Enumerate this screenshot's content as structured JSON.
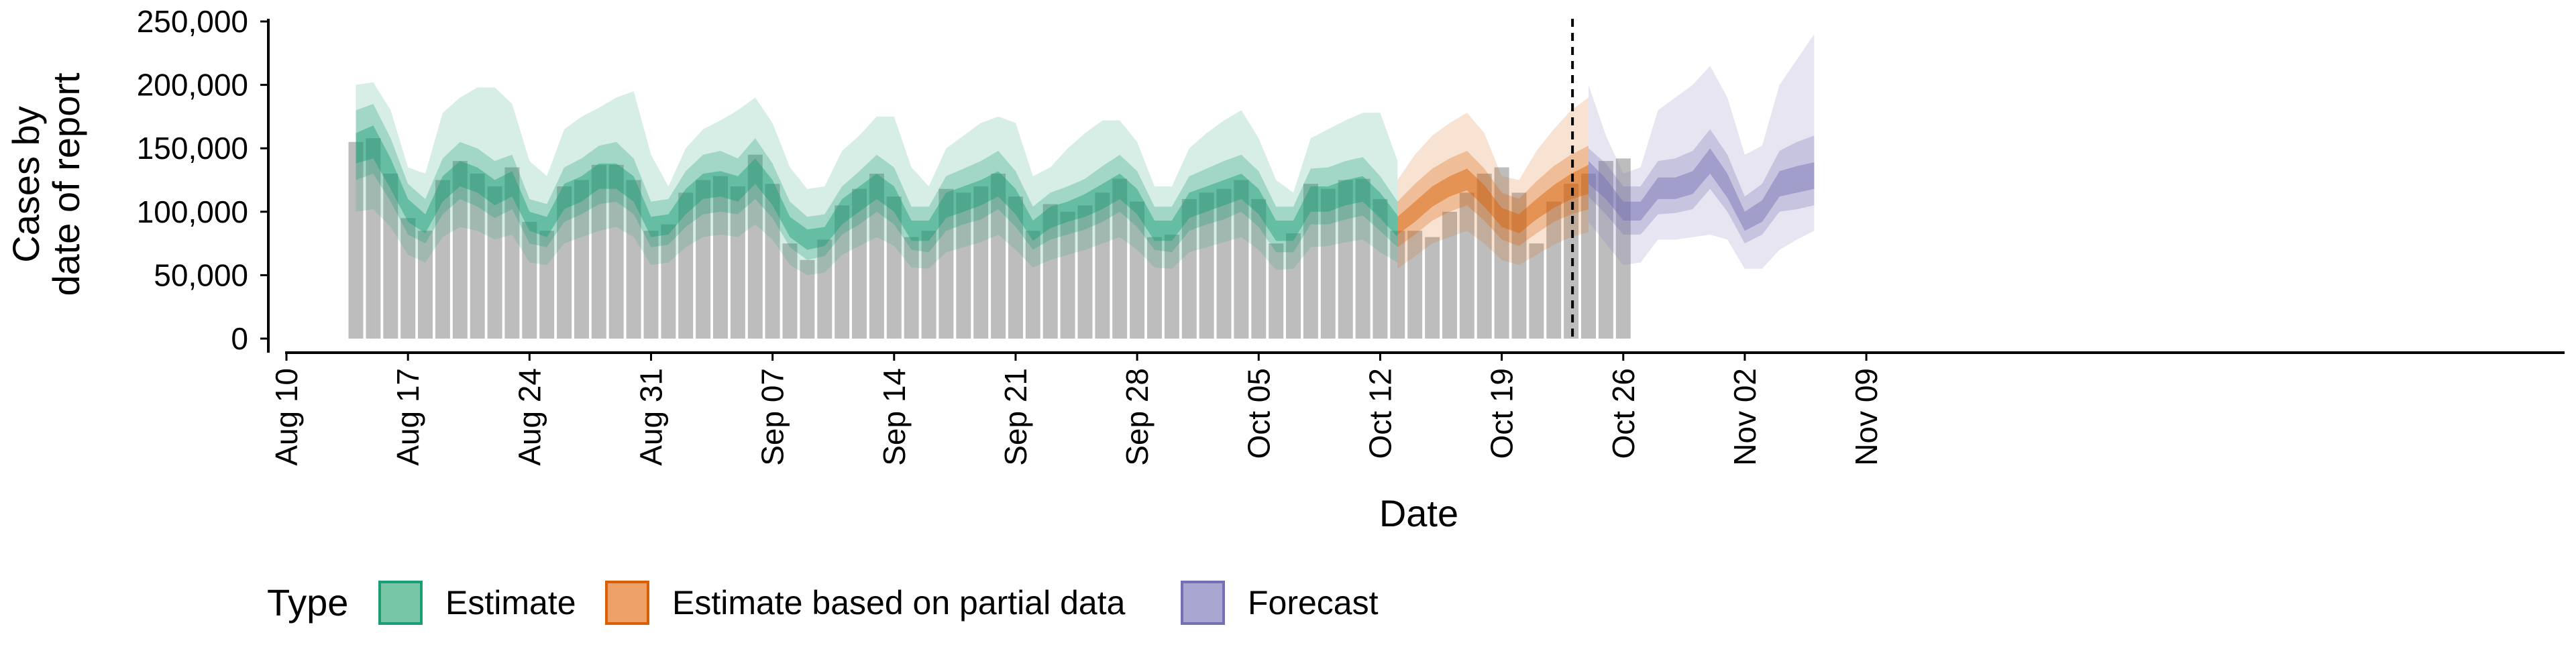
{
  "chart_data": {
    "type": "area",
    "xlabel": "Date",
    "ylabel_lines": [
      "Cases by",
      "date of report"
    ],
    "ylim": [
      0,
      250000
    ],
    "yticks": [
      0,
      50000,
      100000,
      150000,
      200000,
      250000
    ],
    "ytick_labels": [
      "0",
      "50,000",
      "100,000",
      "150,000",
      "200,000",
      "250,000"
    ],
    "xlim": [
      "2020-08-09",
      "2020-11-09"
    ],
    "xticks": [
      "2020-08-10",
      "2020-08-17",
      "2020-08-24",
      "2020-08-31",
      "2020-09-07",
      "2020-09-14",
      "2020-09-21",
      "2020-09-28",
      "2020-10-05",
      "2020-10-12",
      "2020-10-19",
      "2020-10-26",
      "2020-11-02",
      "2020-11-09"
    ],
    "xtick_labels": [
      "Aug 10",
      "Aug 17",
      "Aug 24",
      "Aug 31",
      "Sep 07",
      "Sep 14",
      "Sep 21",
      "Sep 28",
      "Oct 05",
      "Oct 12",
      "Oct 19",
      "Oct 26",
      "Nov 02",
      "Nov 09"
    ],
    "vline": "2020-10-23",
    "bars": {
      "start": "2020-08-14",
      "values": [
        155000,
        158000,
        130000,
        95000,
        85000,
        125000,
        140000,
        130000,
        120000,
        135000,
        92000,
        85000,
        120000,
        125000,
        137000,
        137000,
        125000,
        85000,
        90000,
        115000,
        125000,
        128000,
        120000,
        145000,
        122000,
        75000,
        62000,
        78000,
        105000,
        118000,
        130000,
        112000,
        80000,
        85000,
        118000,
        115000,
        120000,
        130000,
        112000,
        85000,
        106000,
        100000,
        105000,
        115000,
        126000,
        108000,
        80000,
        82000,
        110000,
        115000,
        118000,
        125000,
        110000,
        75000,
        83000,
        122000,
        118000,
        125000,
        126000,
        110000,
        85000,
        85000,
        80000,
        100000,
        115000,
        130000,
        135000,
        115000,
        75000,
        108000,
        122000,
        130000,
        140000,
        142000
      ]
    },
    "legend": {
      "title": "Type",
      "position": "bottom",
      "items": [
        {
          "label": "Estimate",
          "fill": "#77c6a6",
          "stroke": "#1b9e77"
        },
        {
          "label": "Estimate based on partial data",
          "fill": "#eda068",
          "stroke": "#d95f02"
        },
        {
          "label": "Forecast",
          "fill": "#a9a7d2",
          "stroke": "#7570b3"
        }
      ]
    },
    "series": [
      {
        "name": "Estimate",
        "color": "#1b9e77",
        "start": "2020-08-14",
        "median": [
          150000,
          155000,
          130000,
          100000,
          90000,
          118000,
          130000,
          125000,
          115000,
          122000,
          92000,
          88000,
          112000,
          118000,
          128000,
          128000,
          118000,
          88000,
          90000,
          108000,
          120000,
          122000,
          118000,
          132000,
          115000,
          88000,
          78000,
          80000,
          100000,
          110000,
          120000,
          110000,
          85000,
          85000,
          105000,
          110000,
          115000,
          122000,
          108000,
          85000,
          95000,
          100000,
          105000,
          112000,
          120000,
          108000,
          85000,
          85000,
          105000,
          110000,
          115000,
          120000,
          108000,
          85000,
          85000,
          110000,
          110000,
          115000,
          118000,
          105000,
          88000
        ],
        "inner": [
          [
            138000,
            142000,
            118000,
            92000,
            83000,
            108000,
            120000,
            115000,
            105000,
            112000,
            85000,
            80000,
            102000,
            108000,
            118000,
            118000,
            108000,
            80000,
            82000,
            98000,
            110000,
            112000,
            108000,
            122000,
            105000,
            80000,
            70000,
            73000,
            90000,
            100000,
            110000,
            100000,
            77000,
            77000,
            95000,
            100000,
            105000,
            112000,
            98000,
            77000,
            87000,
            92000,
            96000,
            102000,
            110000,
            98000,
            77000,
            77000,
            95000,
            100000,
            105000,
            110000,
            98000,
            77000,
            77000,
            100000,
            100000,
            105000,
            108000,
            95000,
            80000
          ],
          [
            162000,
            168000,
            142000,
            110000,
            98000,
            128000,
            140000,
            135000,
            125000,
            132000,
            100000,
            96000,
            122000,
            128000,
            138000,
            138000,
            128000,
            96000,
            98000,
            118000,
            130000,
            132000,
            128000,
            142000,
            125000,
            96000,
            86000,
            88000,
            110000,
            120000,
            130000,
            120000,
            93000,
            93000,
            115000,
            120000,
            125000,
            132000,
            118000,
            93000,
            104000,
            108000,
            114000,
            122000,
            130000,
            118000,
            93000,
            93000,
            115000,
            120000,
            125000,
            130000,
            118000,
            93000,
            93000,
            120000,
            120000,
            125000,
            128000,
            115000,
            97000
          ]
        ],
        "mid": [
          [
            125000,
            130000,
            108000,
            82000,
            75000,
            98000,
            110000,
            104000,
            95000,
            102000,
            75000,
            72000,
            92000,
            98000,
            106000,
            108000,
            98000,
            72000,
            74000,
            88000,
            98000,
            100000,
            98000,
            110000,
            95000,
            72000,
            62000,
            65000,
            82000,
            90000,
            100000,
            90000,
            70000,
            68000,
            85000,
            90000,
            94000,
            102000,
            88000,
            70000,
            78000,
            82000,
            86000,
            92000,
            100000,
            88000,
            70000,
            68000,
            85000,
            90000,
            94000,
            100000,
            88000,
            68000,
            68000,
            90000,
            90000,
            94000,
            97000,
            85000,
            72000
          ],
          [
            180000,
            185000,
            158000,
            122000,
            110000,
            142000,
            155000,
            150000,
            140000,
            145000,
            110000,
            106000,
            135000,
            142000,
            152000,
            155000,
            142000,
            108000,
            110000,
            132000,
            145000,
            148000,
            142000,
            158000,
            138000,
            108000,
            96000,
            98000,
            120000,
            132000,
            145000,
            135000,
            104000,
            104000,
            128000,
            134000,
            140000,
            148000,
            132000,
            104000,
            115000,
            120000,
            126000,
            136000,
            145000,
            132000,
            104000,
            104000,
            128000,
            134000,
            140000,
            145000,
            132000,
            104000,
            104000,
            134000,
            135000,
            140000,
            143000,
            128000,
            108000
          ]
        ],
        "outer": [
          [
            100000,
            102000,
            88000,
            66000,
            60000,
            80000,
            88000,
            85000,
            78000,
            82000,
            60000,
            58000,
            75000,
            80000,
            85000,
            88000,
            80000,
            58000,
            60000,
            72000,
            80000,
            82000,
            80000,
            90000,
            78000,
            58000,
            50000,
            52000,
            66000,
            73000,
            80000,
            73000,
            56000,
            55000,
            68000,
            72000,
            76000,
            82000,
            70000,
            56000,
            62000,
            66000,
            70000,
            75000,
            80000,
            70000,
            56000,
            55000,
            68000,
            72000,
            76000,
            80000,
            70000,
            54000,
            55000,
            72000,
            73000,
            76000,
            78000,
            68000,
            60000
          ],
          [
            200000,
            202000,
            180000,
            135000,
            130000,
            178000,
            190000,
            198000,
            198000,
            185000,
            140000,
            128000,
            165000,
            175000,
            182000,
            190000,
            195000,
            145000,
            120000,
            150000,
            165000,
            172000,
            180000,
            190000,
            170000,
            135000,
            118000,
            120000,
            148000,
            160000,
            175000,
            175000,
            135000,
            120000,
            150000,
            160000,
            170000,
            175000,
            170000,
            128000,
            135000,
            150000,
            162000,
            172000,
            172000,
            155000,
            120000,
            120000,
            150000,
            162000,
            172000,
            180000,
            158000,
            125000,
            115000,
            158000,
            165000,
            172000,
            178000,
            178000,
            140000
          ]
        ]
      },
      {
        "name": "Estimate based on partial data",
        "color": "#d95f02",
        "start": "2020-10-13",
        "median": [
          88000,
          100000,
          112000,
          120000,
          125000,
          112000,
          95000,
          90000,
          102000,
          112000,
          120000,
          125000
        ],
        "inner": [
          [
            82000,
            92000,
            104000,
            112000,
            117000,
            104000,
            88000,
            83000,
            94000,
            103000,
            110000,
            114000
          ],
          [
            96000,
            108000,
            120000,
            128000,
            134000,
            121000,
            103000,
            98000,
            110000,
            121000,
            130000,
            137000
          ]
        ],
        "mid": [
          [
            72000,
            82000,
            93000,
            100000,
            105000,
            93000,
            78000,
            73000,
            83000,
            92000,
            98000,
            102000
          ],
          [
            108000,
            122000,
            134000,
            142000,
            148000,
            134000,
            115000,
            110000,
            124000,
            136000,
            145000,
            152000
          ]
        ],
        "outer": [
          [
            55000,
            65000,
            75000,
            80000,
            85000,
            75000,
            62000,
            58000,
            66000,
            74000,
            80000,
            84000
          ],
          [
            125000,
            145000,
            160000,
            170000,
            178000,
            162000,
            128000,
            125000,
            148000,
            165000,
            180000,
            190000
          ]
        ]
      },
      {
        "name": "Forecast",
        "color": "#7570b3",
        "start": "2020-10-24",
        "median": [
          130000,
          118000,
          100000,
          100000,
          118000,
          118000,
          122000,
          140000,
          120000,
          92000,
          100000,
          122000,
          125000,
          128000
        ],
        "inner": [
          [
            122000,
            110000,
            93000,
            93000,
            110000,
            110000,
            114000,
            130000,
            111000,
            85000,
            92000,
            112000,
            115000,
            118000
          ],
          [
            140000,
            126000,
            108000,
            108000,
            127000,
            127000,
            132000,
            150000,
            130000,
            100000,
            109000,
            132000,
            136000,
            139000
          ]
        ],
        "mid": [
          [
            112000,
            98000,
            82000,
            82000,
            98000,
            99000,
            102000,
            118000,
            100000,
            75000,
            82000,
            100000,
            102000,
            105000
          ],
          [
            150000,
            138000,
            120000,
            120000,
            140000,
            142000,
            148000,
            165000,
            145000,
            112000,
            122000,
            148000,
            155000,
            160000
          ]
        ],
        "outer": [
          [
            92000,
            75000,
            58000,
            60000,
            78000,
            78000,
            80000,
            82000,
            78000,
            55000,
            55000,
            70000,
            78000,
            85000
          ],
          [
            200000,
            160000,
            130000,
            135000,
            180000,
            190000,
            200000,
            215000,
            190000,
            145000,
            152000,
            200000,
            220000,
            240000
          ]
        ]
      }
    ]
  }
}
